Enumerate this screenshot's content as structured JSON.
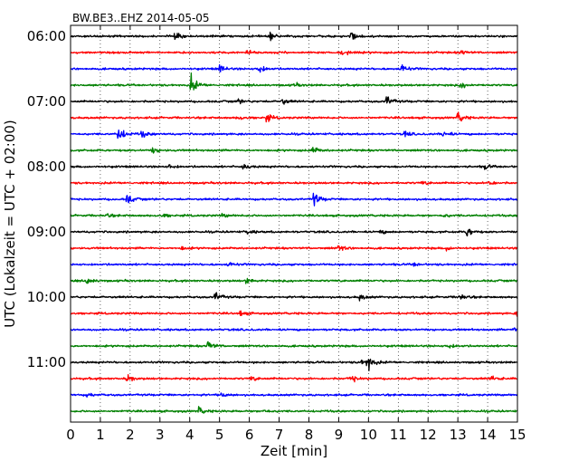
{
  "chart_data": {
    "type": "line",
    "title": "BW.BE3..EHZ 2014-05-05",
    "xlabel": "Zeit  [min]",
    "ylabel": "UTC (Lokalzeit = UTC + 02:00)",
    "xlim": [
      0,
      15
    ],
    "x_ticks": [
      0,
      1,
      2,
      3,
      4,
      5,
      6,
      7,
      8,
      9,
      10,
      11,
      12,
      13,
      14,
      15
    ],
    "x_tick_labels": [
      "0",
      "1",
      "2",
      "3",
      "4",
      "5",
      "6",
      "7",
      "8",
      "9",
      "10",
      "11",
      "12",
      "13",
      "14",
      "15"
    ],
    "grid": "x-dotted",
    "line_colors": [
      "#000000",
      "#ff0000",
      "#0000ff",
      "#008000"
    ],
    "time_labels": [
      {
        "label": "06:00",
        "line": 0
      },
      {
        "label": "07:00",
        "line": 4
      },
      {
        "label": "08:00",
        "line": 8
      },
      {
        "label": "09:00",
        "line": 12
      },
      {
        "label": "10:00",
        "line": 16
      },
      {
        "label": "11:00",
        "line": 20
      }
    ],
    "series": [
      {
        "start": "06:00",
        "color": "#000000",
        "events": [
          {
            "x": 3.5,
            "amp": 0.8
          },
          {
            "x": 6.7,
            "amp": 0.5
          },
          {
            "x": 9.4,
            "amp": 0.8
          }
        ]
      },
      {
        "start": "06:15",
        "color": "#ff0000",
        "events": [
          {
            "x": 5.9,
            "amp": 0.35
          },
          {
            "x": 9.1,
            "amp": 0.5
          },
          {
            "x": 13.1,
            "amp": 0.4
          }
        ]
      },
      {
        "start": "06:30",
        "color": "#0000ff",
        "events": [
          {
            "x": 5.0,
            "amp": 0.6
          },
          {
            "x": 6.3,
            "amp": 0.9
          },
          {
            "x": 11.1,
            "amp": 0.8
          }
        ]
      },
      {
        "start": "06:45",
        "color": "#008000",
        "events": [
          {
            "x": 4.05,
            "amp": 1.5
          },
          {
            "x": 7.5,
            "amp": 0.3
          },
          {
            "x": 13.1,
            "amp": 0.4
          }
        ]
      },
      {
        "start": "07:00",
        "color": "#000000",
        "events": [
          {
            "x": 5.6,
            "amp": 0.4
          },
          {
            "x": 7.1,
            "amp": 0.5
          },
          {
            "x": 10.6,
            "amp": 0.9
          }
        ]
      },
      {
        "start": "07:15",
        "color": "#ff0000",
        "events": [
          {
            "x": 5.6,
            "amp": 0.4
          },
          {
            "x": 6.55,
            "amp": 0.8
          },
          {
            "x": 13.0,
            "amp": 0.9
          }
        ]
      },
      {
        "start": "07:30",
        "color": "#0000ff",
        "events": [
          {
            "x": 1.6,
            "amp": 1.5
          },
          {
            "x": 2.4,
            "amp": 0.6
          },
          {
            "x": 11.2,
            "amp": 0.4
          },
          {
            "x": 12.5,
            "amp": 0.6
          }
        ]
      },
      {
        "start": "07:45",
        "color": "#008000",
        "events": [
          {
            "x": 2.75,
            "amp": 0.5
          },
          {
            "x": 8.1,
            "amp": 0.7
          }
        ]
      },
      {
        "start": "08:00",
        "color": "#000000",
        "events": [
          {
            "x": 3.3,
            "amp": 0.4
          },
          {
            "x": 5.8,
            "amp": 0.6
          },
          {
            "x": 13.9,
            "amp": 0.4
          }
        ]
      },
      {
        "start": "08:15",
        "color": "#ff0000",
        "events": [
          {
            "x": 11.8,
            "amp": 0.3
          },
          {
            "x": 14.0,
            "amp": 0.5
          }
        ]
      },
      {
        "start": "08:30",
        "color": "#0000ff",
        "events": [
          {
            "x": 1.9,
            "amp": 0.9
          },
          {
            "x": 8.15,
            "amp": 1.2
          }
        ]
      },
      {
        "start": "08:45",
        "color": "#008000",
        "events": [
          {
            "x": 1.2,
            "amp": 0.3
          },
          {
            "x": 3.1,
            "amp": 0.3
          },
          {
            "x": 5.1,
            "amp": 0.3
          },
          {
            "x": 12.5,
            "amp": 0.3
          }
        ]
      },
      {
        "start": "09:00",
        "color": "#000000",
        "events": [
          {
            "x": 5.9,
            "amp": 0.4
          },
          {
            "x": 10.4,
            "amp": 0.3
          },
          {
            "x": 13.3,
            "amp": 0.8
          }
        ]
      },
      {
        "start": "09:15",
        "color": "#ff0000",
        "events": [
          {
            "x": 3.7,
            "amp": 0.3
          },
          {
            "x": 9.0,
            "amp": 0.5
          },
          {
            "x": 12.6,
            "amp": 0.4
          }
        ]
      },
      {
        "start": "09:30",
        "color": "#0000ff",
        "events": [
          {
            "x": 5.3,
            "amp": 0.4
          },
          {
            "x": 11.5,
            "amp": 0.3
          }
        ]
      },
      {
        "start": "09:45",
        "color": "#008000",
        "events": [
          {
            "x": 0.55,
            "amp": 0.6
          },
          {
            "x": 5.9,
            "amp": 0.5
          }
        ]
      },
      {
        "start": "10:00",
        "color": "#000000",
        "events": [
          {
            "x": 4.85,
            "amp": 0.8
          },
          {
            "x": 9.7,
            "amp": 0.5
          },
          {
            "x": 13.05,
            "amp": 0.7
          }
        ]
      },
      {
        "start": "10:15",
        "color": "#ff0000",
        "events": [
          {
            "x": 5.7,
            "amp": 0.4
          },
          {
            "x": 14.95,
            "amp": 0.4
          }
        ]
      },
      {
        "start": "10:30",
        "color": "#0000ff",
        "events": [
          {
            "x": 14.9,
            "amp": 0.4
          }
        ]
      },
      {
        "start": "10:45",
        "color": "#008000",
        "events": [
          {
            "x": 4.6,
            "amp": 0.9
          },
          {
            "x": 12.65,
            "amp": 0.5
          }
        ]
      },
      {
        "start": "11:00",
        "color": "#000000",
        "events": [
          {
            "x": 9.7,
            "amp": 0.4
          },
          {
            "x": 9.95,
            "amp": 1.4
          }
        ]
      },
      {
        "start": "11:15",
        "color": "#ff0000",
        "events": [
          {
            "x": 1.9,
            "amp": 0.6
          },
          {
            "x": 6.05,
            "amp": 0.4
          },
          {
            "x": 9.4,
            "amp": 0.6
          },
          {
            "x": 14.1,
            "amp": 0.4
          }
        ]
      },
      {
        "start": "11:30",
        "color": "#0000ff",
        "events": [
          {
            "x": 0.55,
            "amp": 0.3
          },
          {
            "x": 5.05,
            "amp": 0.4
          }
        ]
      },
      {
        "start": "11:45",
        "color": "#008000",
        "events": [
          {
            "x": 4.3,
            "amp": 0.6
          },
          {
            "x": 6.5,
            "amp": 0.3
          }
        ]
      }
    ]
  }
}
